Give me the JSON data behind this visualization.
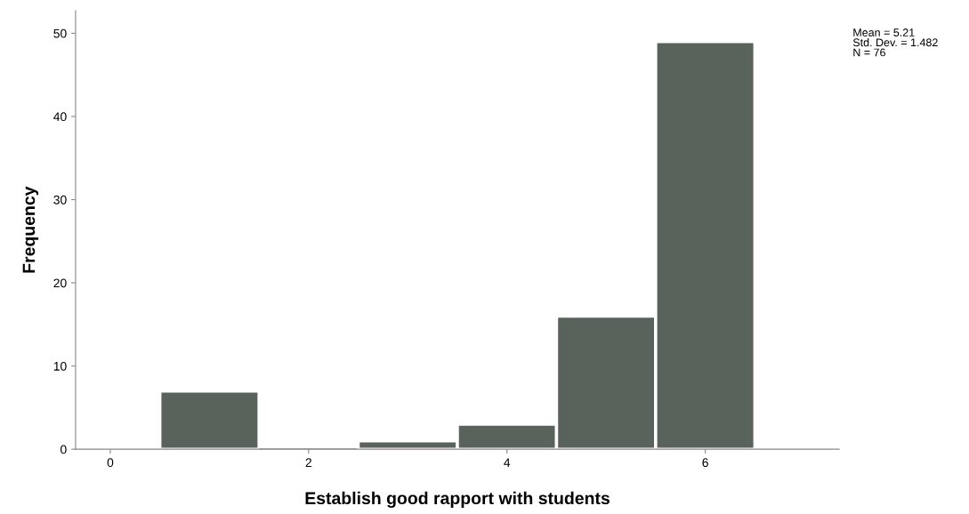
{
  "chart_data": {
    "type": "histogram",
    "xlabel": "Establish good rapport with students",
    "ylabel": "Frequency",
    "bins": [
      0.5,
      1.5,
      2.5,
      3.5,
      4.5,
      5.5,
      6.5
    ],
    "values": [
      7,
      0,
      1,
      3,
      16,
      49
    ],
    "color": "#5a625c",
    "xlim": [
      -0.35,
      7.35
    ],
    "xticks": [
      0,
      2,
      4,
      6
    ],
    "ylim": [
      0,
      52.7
    ],
    "yticks": [
      0,
      10,
      20,
      30,
      40,
      50
    ],
    "grid": false,
    "annotations": [
      "Mean = 5.21\nStd. Dev. = 1.482\nN = 76"
    ]
  }
}
